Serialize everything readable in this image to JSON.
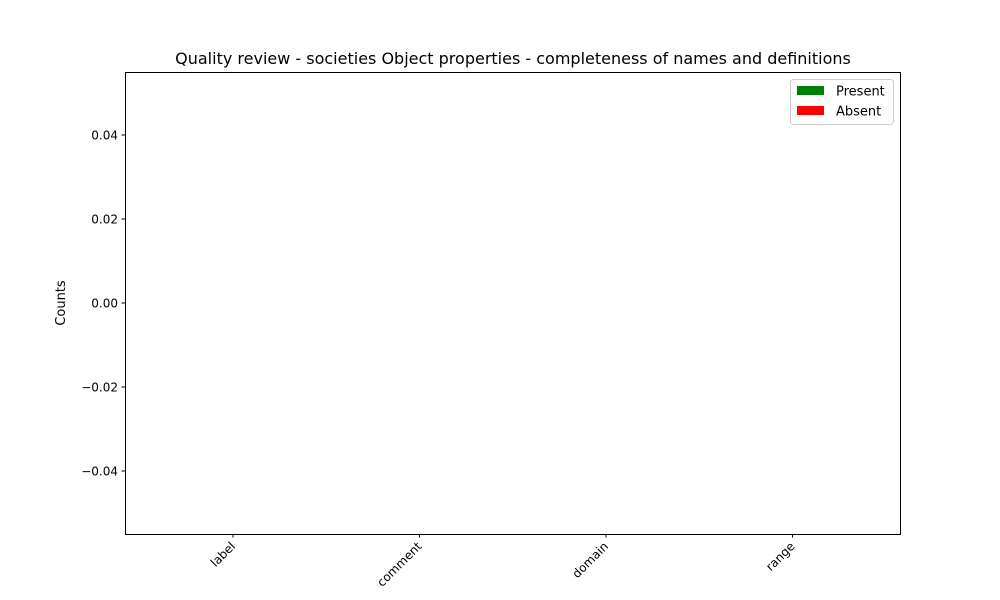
{
  "chart_data": {
    "type": "bar",
    "title": "Quality review - societies Object properties - completeness of names and definitions",
    "xlabel": "",
    "ylabel": "Counts",
    "categories": [
      "label",
      "comment",
      "domain",
      "range"
    ],
    "series": [
      {
        "name": "Present",
        "color": "#008000",
        "values": [
          0,
          0,
          0,
          0
        ]
      },
      {
        "name": "Absent",
        "color": "#ff0000",
        "values": [
          0,
          0,
          0,
          0
        ]
      }
    ],
    "ylim": [
      -0.055,
      0.055
    ],
    "yticks": [
      0.04,
      0.02,
      0.0,
      -0.02,
      -0.04
    ],
    "ytick_labels": [
      "0.04",
      "0.02",
      "0.00",
      "−0.02",
      "−0.04"
    ],
    "legend_position": "top-right",
    "grid": false,
    "stacked": true
  }
}
